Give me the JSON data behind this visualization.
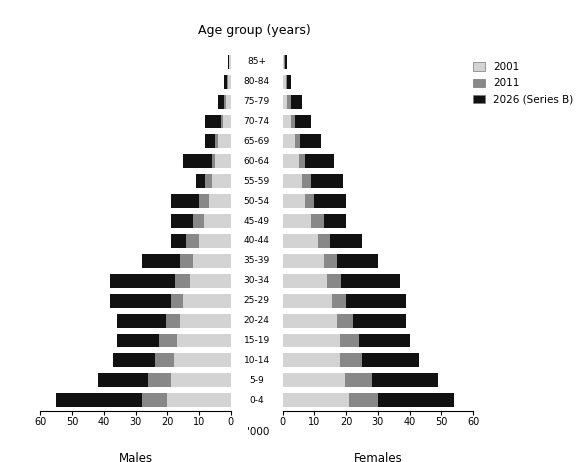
{
  "age_groups": [
    "0-4",
    "5-9",
    "10-14",
    "15-19",
    "20-24",
    "25-29",
    "30-34",
    "35-39",
    "40-44",
    "45-49",
    "50-54",
    "55-59",
    "60-64",
    "65-69",
    "70-74",
    "75-79",
    "80-84",
    "85+"
  ],
  "males_2001": [
    20.0,
    19.0,
    18.0,
    17.0,
    16.0,
    15.0,
    13.0,
    12.0,
    10.0,
    8.5,
    7.0,
    6.0,
    5.0,
    4.0,
    2.5,
    1.5,
    1.0,
    0.5
  ],
  "males_2011": [
    28.0,
    26.0,
    24.0,
    22.5,
    20.5,
    19.0,
    17.5,
    16.0,
    14.0,
    12.0,
    10.0,
    8.0,
    6.0,
    5.0,
    3.0,
    2.0,
    1.2,
    0.6
  ],
  "males_2026": [
    55.0,
    42.0,
    37.0,
    36.0,
    36.0,
    38.0,
    38.0,
    28.0,
    19.0,
    19.0,
    19.0,
    11.0,
    15.0,
    8.0,
    8.0,
    4.0,
    2.0,
    1.0
  ],
  "females_2001": [
    21.0,
    19.5,
    18.0,
    18.0,
    17.0,
    15.5,
    14.0,
    13.0,
    11.0,
    9.0,
    7.0,
    6.0,
    5.0,
    4.0,
    2.5,
    1.5,
    1.0,
    0.5
  ],
  "females_2011": [
    30.0,
    28.0,
    25.0,
    24.0,
    22.0,
    20.0,
    18.5,
    17.0,
    15.0,
    13.0,
    10.0,
    9.0,
    7.0,
    5.5,
    4.0,
    2.5,
    1.5,
    0.7
  ],
  "females_2026": [
    54.0,
    49.0,
    43.0,
    40.0,
    39.0,
    39.0,
    37.0,
    30.0,
    25.0,
    20.0,
    20.0,
    19.0,
    16.0,
    12.0,
    9.0,
    6.0,
    2.5,
    1.2
  ],
  "color_2001": "#d3d3d3",
  "color_2011": "#888888",
  "color_2026": "#111111",
  "xlim": 60,
  "title": "Age group (years)",
  "label_males": "Males",
  "label_females": "Females",
  "tick_unit": "'000",
  "legend_2001": "2001",
  "legend_2011": "2011",
  "legend_2026": "2026 (Series B)"
}
